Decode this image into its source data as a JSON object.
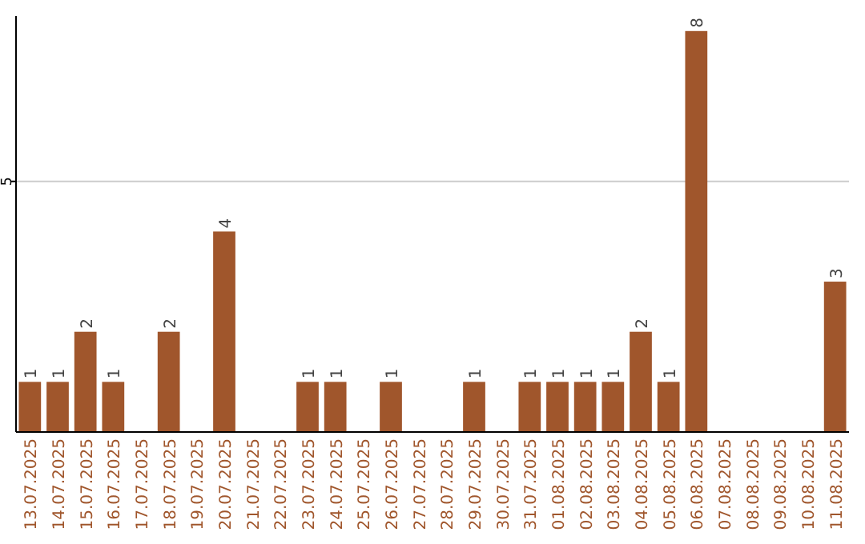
{
  "chart_data": {
    "type": "bar",
    "categories": [
      "13.07.2025",
      "14.07.2025",
      "15.07.2025",
      "16.07.2025",
      "17.07.2025",
      "18.07.2025",
      "19.07.2025",
      "20.07.2025",
      "21.07.2025",
      "22.07.2025",
      "23.07.2025",
      "24.07.2025",
      "25.07.2025",
      "26.07.2025",
      "27.07.2025",
      "28.07.2025",
      "29.07.2025",
      "30.07.2025",
      "31.07.2025",
      "01.08.2025",
      "02.08.2025",
      "03.08.2025",
      "04.08.2025",
      "05.08.2025",
      "06.08.2025",
      "07.08.2025",
      "08.08.2025",
      "09.08.2025",
      "10.08.2025",
      "11.08.2025"
    ],
    "values": [
      1,
      1,
      2,
      1,
      0,
      2,
      0,
      4,
      0,
      0,
      1,
      1,
      0,
      1,
      0,
      0,
      1,
      0,
      1,
      1,
      1,
      1,
      2,
      1,
      8,
      0,
      0,
      0,
      0,
      3
    ],
    "value_labels": [
      "1",
      "1",
      "2",
      "1",
      null,
      "2",
      null,
      "4",
      null,
      null,
      "1",
      "1",
      null,
      "1",
      null,
      null,
      "1",
      null,
      "1",
      "1",
      "1",
      "1",
      "2",
      "1",
      "8",
      null,
      null,
      null,
      null,
      "3"
    ],
    "color": "#a0562c",
    "ylim": [
      0,
      8.3
    ],
    "yticks": [
      5
    ],
    "grid": "y"
  }
}
